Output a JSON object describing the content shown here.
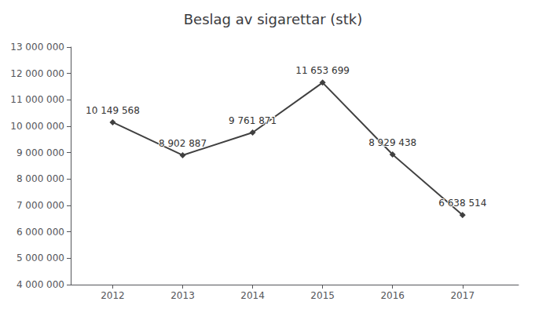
{
  "chart_data": {
    "type": "line",
    "title": "Beslag av sigarettar (stk)",
    "x": [
      2012,
      2013,
      2014,
      2015,
      2016,
      2017
    ],
    "values": [
      10149568,
      8902887,
      9761871,
      11653699,
      8929438,
      6638514
    ],
    "value_labels": [
      "10 149 568",
      "8 902 887",
      "9 761 871",
      "11 653 699",
      "8 929 438",
      "6 638 514"
    ],
    "data_labels": true,
    "color": "#404040",
    "marker": "diamond",
    "xlim": [
      2011.4,
      2017.8
    ],
    "xticks": [
      2012,
      2013,
      2014,
      2015,
      2016,
      2017
    ],
    "ylim": [
      4000000,
      13000000
    ],
    "yticks": [
      {
        "value": 4000000,
        "label": "4 000 000"
      },
      {
        "value": 5000000,
        "label": "5 000 000"
      },
      {
        "value": 6000000,
        "label": "6 000 000"
      },
      {
        "value": 7000000,
        "label": "7 000 000"
      },
      {
        "value": 8000000,
        "label": "8 000 000"
      },
      {
        "value": 9000000,
        "label": "9 000 000"
      },
      {
        "value": 10000000,
        "label": "10 000 000"
      },
      {
        "value": 11000000,
        "label": "11 000 000"
      },
      {
        "value": 12000000,
        "label": "12 000 000"
      },
      {
        "value": 13000000,
        "label": "13 000 000"
      }
    ],
    "grid": false
  }
}
